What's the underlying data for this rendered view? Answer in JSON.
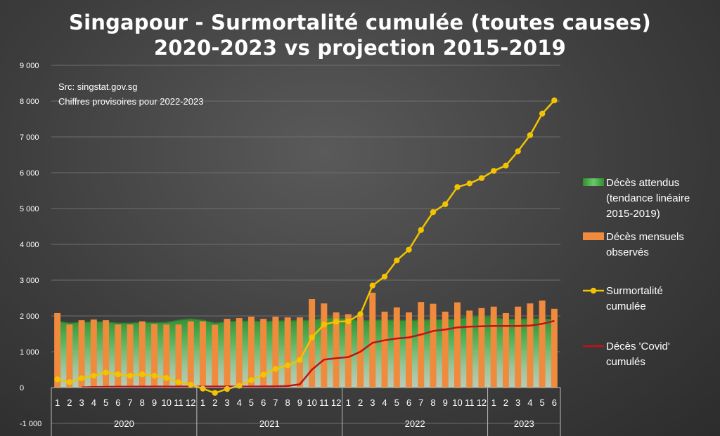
{
  "chart_data": {
    "type": "bar",
    "title": [
      "Singapour - Surmortalité cumulée (toutes causes)",
      "2020-2023 vs projection 2015-2019"
    ],
    "annotations": [
      "Src: singstat.gov.sg",
      "Chiffres provisoires pour 2022-2023"
    ],
    "ylim": [
      -1000,
      9000
    ],
    "yticks": [
      -1000,
      0,
      1000,
      2000,
      3000,
      4000,
      5000,
      6000,
      7000,
      8000,
      9000
    ],
    "ytick_labels": [
      "-1 000",
      "0",
      "1 000",
      "2 000",
      "3 000",
      "4 000",
      "5 000",
      "6 000",
      "7 000",
      "8 000",
      "9 000"
    ],
    "grid": true,
    "legend_position": "right",
    "years": [
      {
        "label": "2020",
        "months": 12
      },
      {
        "label": "2021",
        "months": 12
      },
      {
        "label": "2022",
        "months": 12
      },
      {
        "label": "2023",
        "months": 6
      }
    ],
    "categories": [
      "1",
      "2",
      "3",
      "4",
      "5",
      "6",
      "7",
      "8",
      "9",
      "10",
      "11",
      "12",
      "1",
      "2",
      "3",
      "4",
      "5",
      "6",
      "7",
      "8",
      "9",
      "10",
      "11",
      "12",
      "1",
      "2",
      "3",
      "4",
      "5",
      "6",
      "7",
      "8",
      "9",
      "10",
      "11",
      "12",
      "1",
      "2",
      "3",
      "4",
      "5",
      "6"
    ],
    "series": [
      {
        "name": "Décès attendus (tendance linéaire 2015-2019)",
        "legend_lines": [
          "Décès attendus",
          "(tendance linéaire",
          "2015-2019)"
        ],
        "type": "area",
        "color": "#3aa83a",
        "values": [
          1850,
          1800,
          1820,
          1840,
          1830,
          1800,
          1800,
          1820,
          1810,
          1820,
          1880,
          1920,
          1880,
          1800,
          1840,
          1850,
          1860,
          1840,
          1860,
          1860,
          1870,
          1880,
          1940,
          1950,
          1920,
          1860,
          1880,
          1890,
          1880,
          1870,
          1890,
          1890,
          1900,
          1910,
          1980,
          2000,
          1960,
          1900,
          1910,
          1920,
          1920,
          1900
        ]
      },
      {
        "name": "Décès mensuels observés",
        "legend_lines": [
          "Décès mensuels",
          "observés"
        ],
        "type": "bar",
        "color": "#f08a3c",
        "values": [
          2080,
          1760,
          1880,
          1900,
          1880,
          1760,
          1760,
          1850,
          1780,
          1760,
          1760,
          1850,
          1850,
          1750,
          1920,
          1940,
          1980,
          1920,
          1980,
          1960,
          1960,
          2470,
          2350,
          2100,
          2050,
          1980,
          2650,
          2120,
          2240,
          2100,
          2390,
          2340,
          2120,
          2380,
          2150,
          2220,
          2260,
          2080,
          2260,
          2350,
          2430,
          2200
        ]
      },
      {
        "name": "Surmortalité cumulée",
        "legend_lines": [
          "Surmortalité",
          "cumulée"
        ],
        "type": "line",
        "color": "#f2c300",
        "values": [
          230,
          150,
          260,
          330,
          420,
          370,
          330,
          370,
          330,
          270,
          150,
          80,
          -30,
          -150,
          -40,
          50,
          210,
          360,
          520,
          620,
          770,
          1400,
          1760,
          1840,
          1850,
          2050,
          2850,
          3100,
          3550,
          3850,
          4400,
          4900,
          5120,
          5600,
          5700,
          5850,
          6050,
          6200,
          6600,
          7050,
          7650,
          8020
        ]
      },
      {
        "name": "Décès 'Covid' cumulés",
        "legend_lines": [
          "Décès 'Covid'",
          "cumulés"
        ],
        "type": "line",
        "color": "#c0121a",
        "values": [
          null,
          null,
          5,
          15,
          20,
          25,
          25,
          27,
          27,
          28,
          28,
          29,
          29,
          29,
          30,
          30,
          30,
          33,
          35,
          45,
          90,
          500,
          780,
          820,
          850,
          1000,
          1250,
          1320,
          1370,
          1400,
          1480,
          1580,
          1620,
          1680,
          1700,
          1710,
          1720,
          1720,
          1720,
          1730,
          1780,
          1860
        ]
      }
    ]
  }
}
